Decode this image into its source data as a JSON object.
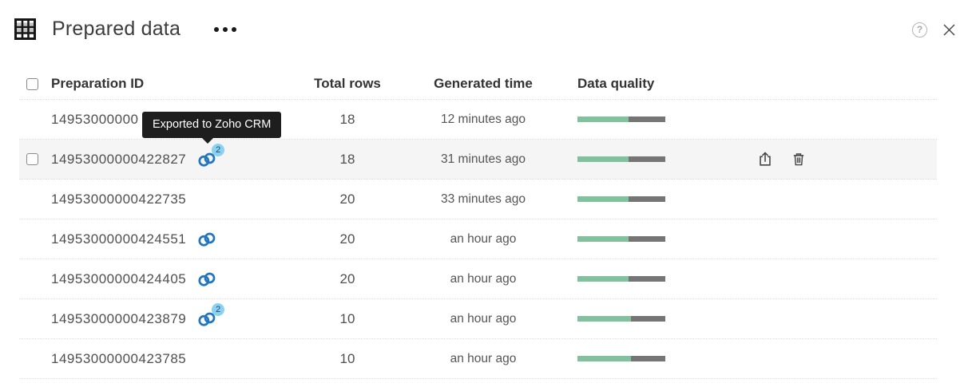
{
  "window": {
    "title": "Prepared data",
    "help_glyph": "?",
    "close_glyph": "✕"
  },
  "tooltip": {
    "text": "Exported to Zoho CRM"
  },
  "table": {
    "columns": [
      "Preparation ID",
      "Total rows",
      "Generated time",
      "Data quality"
    ],
    "rows": [
      {
        "id": "14953000000",
        "total_rows": "18",
        "generated_time": "12 minutes ago",
        "quality_green_pct": 58,
        "link_icon": false,
        "badge": "",
        "checkbox": false,
        "highlighted": false,
        "actions": false
      },
      {
        "id": "14953000000422827",
        "total_rows": "18",
        "generated_time": "31 minutes ago",
        "quality_green_pct": 58,
        "link_icon": true,
        "badge": "2",
        "checkbox": true,
        "highlighted": true,
        "actions": true
      },
      {
        "id": "14953000000422735",
        "total_rows": "20",
        "generated_time": "33 minutes ago",
        "quality_green_pct": 58,
        "link_icon": false,
        "badge": "",
        "checkbox": false,
        "highlighted": false,
        "actions": false
      },
      {
        "id": "14953000000424551",
        "total_rows": "20",
        "generated_time": "an hour ago",
        "quality_green_pct": 58,
        "link_icon": true,
        "badge": "",
        "checkbox": false,
        "highlighted": false,
        "actions": false
      },
      {
        "id": "14953000000424405",
        "total_rows": "20",
        "generated_time": "an hour ago",
        "quality_green_pct": 58,
        "link_icon": true,
        "badge": "",
        "checkbox": false,
        "highlighted": false,
        "actions": false
      },
      {
        "id": "14953000000423879",
        "total_rows": "10",
        "generated_time": "an hour ago",
        "quality_green_pct": 61,
        "link_icon": true,
        "badge": "2",
        "checkbox": false,
        "highlighted": false,
        "actions": false
      },
      {
        "id": "14953000000423785",
        "total_rows": "10",
        "generated_time": "an hour ago",
        "quality_green_pct": 61,
        "link_icon": false,
        "badge": "",
        "checkbox": false,
        "highlighted": false,
        "actions": false
      }
    ]
  },
  "colors": {
    "quality_green": "#82c19e",
    "quality_gray": "#757575",
    "row_highlight": "#f5f5f5",
    "tooltip_bg": "#1e1e1e",
    "crm_blue": "#2276bd",
    "badge_blue": "#8ad1f3"
  }
}
